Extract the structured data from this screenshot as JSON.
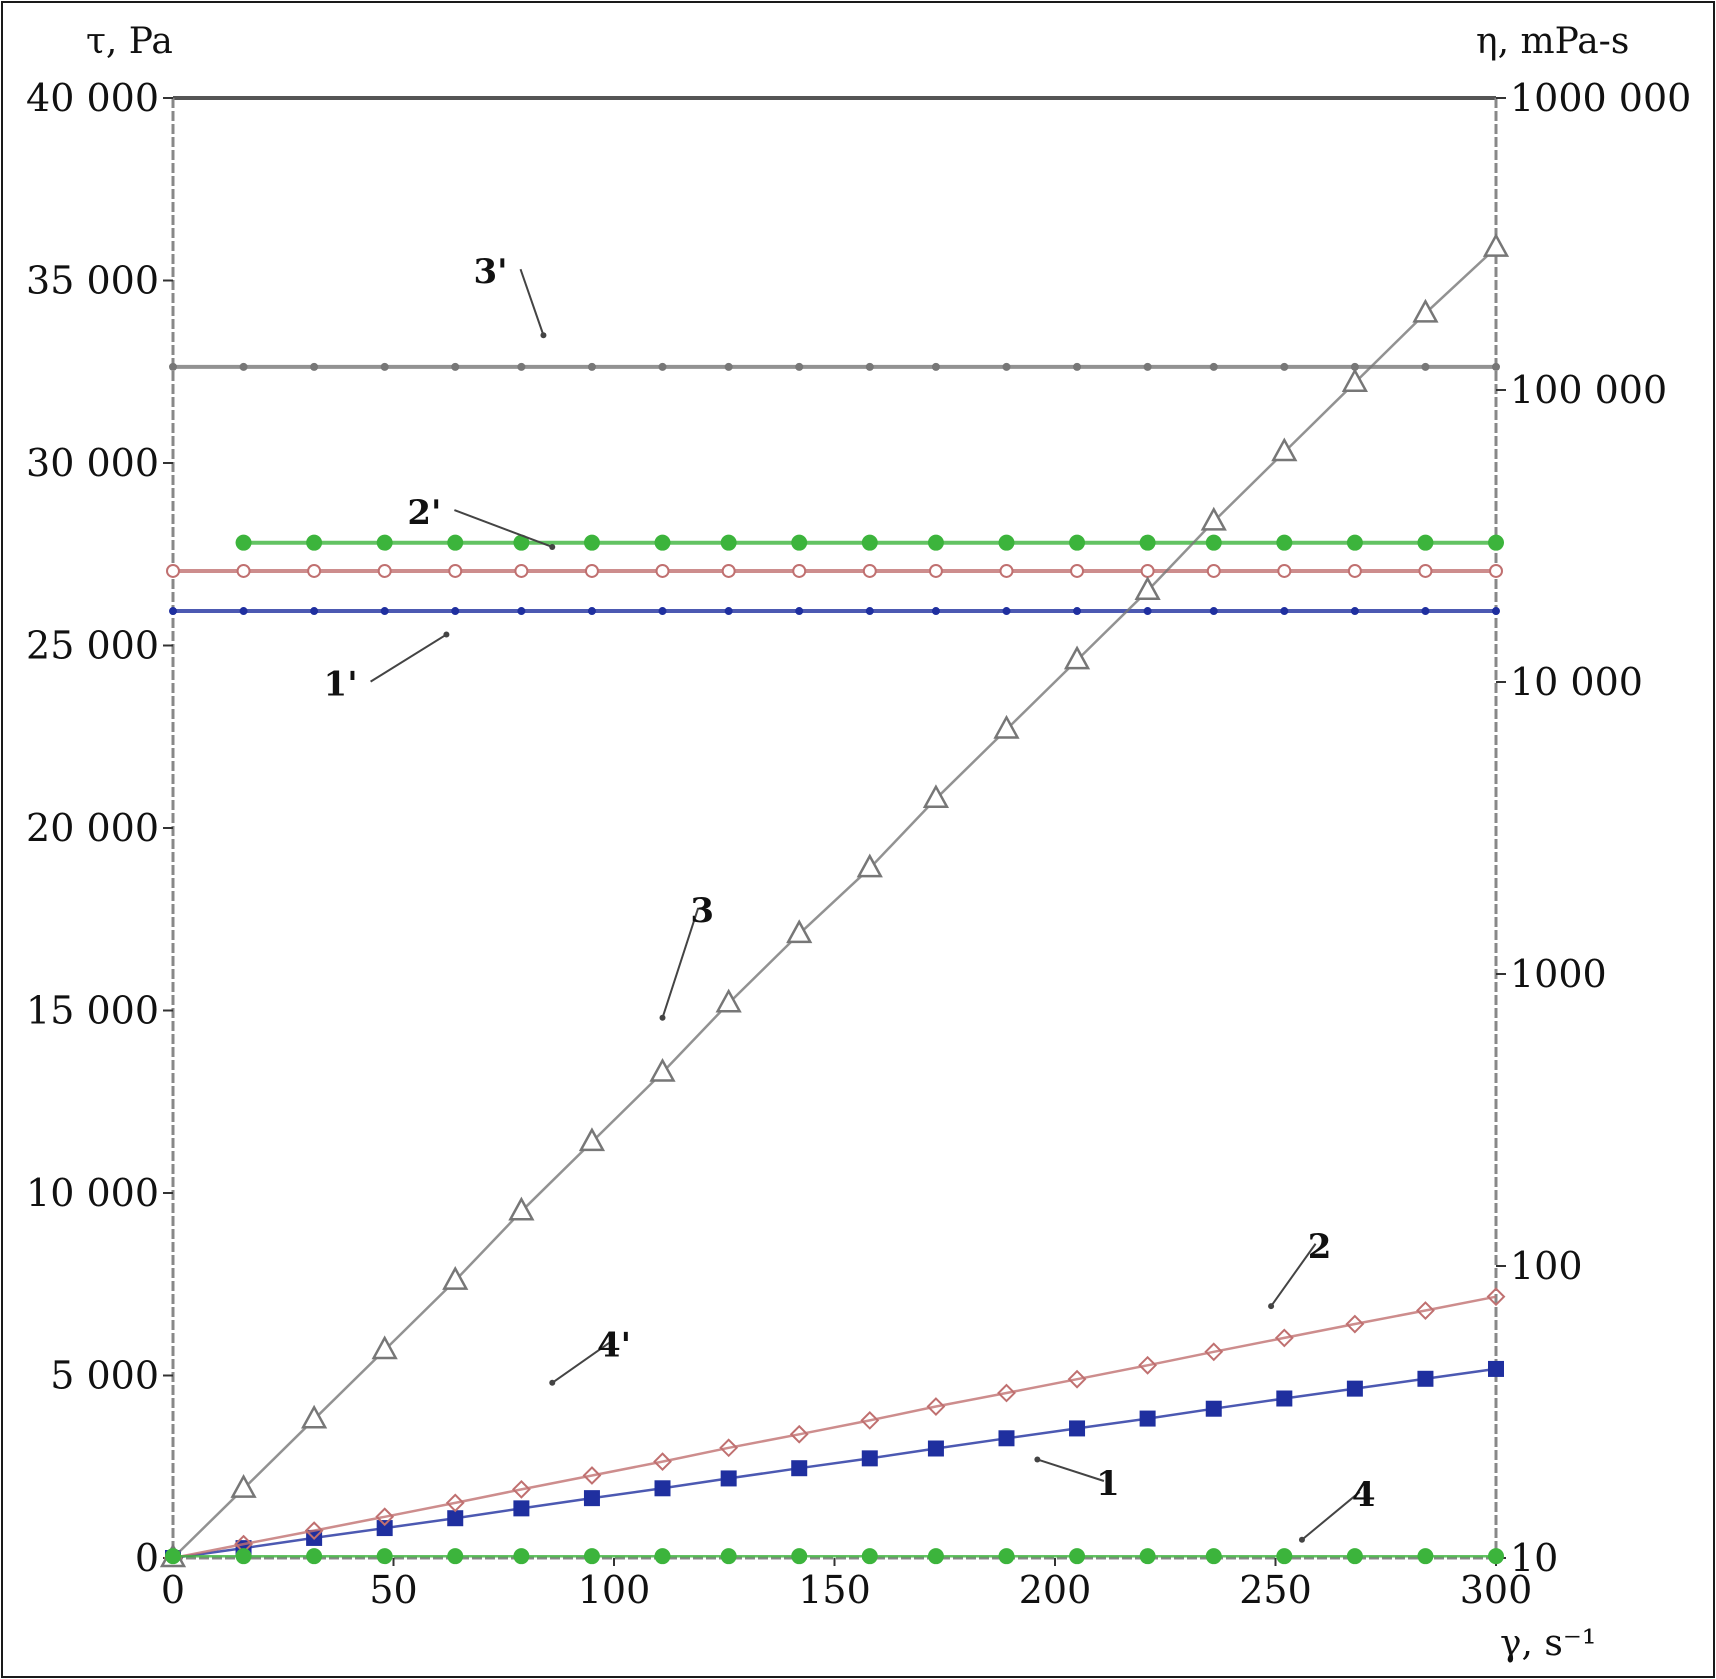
{
  "chart_data": {
    "type": "line",
    "left_axis_label": "τ, Pa",
    "right_axis_label": "η, mPa-s",
    "xlabel": "γ, s⁻¹",
    "xlim": [
      0,
      300
    ],
    "ylim_left": [
      0,
      40000
    ],
    "ylim_right_log": [
      10,
      1000000
    ],
    "x_ticks": [
      "0",
      "50",
      "100",
      "150",
      "200",
      "250",
      "300"
    ],
    "left_ticks": [
      "0",
      "5 000",
      "10 000",
      "15 000",
      "20 000",
      "25 000",
      "30 000",
      "35 000",
      "40 000"
    ],
    "right_ticks": [
      "10",
      "100",
      "1000",
      "10 000",
      "100 000",
      "1000 000"
    ],
    "right_tick_values": [
      10,
      100,
      1000,
      10000,
      100000,
      1000000
    ],
    "colors": {
      "blue": "#1f2f9f",
      "red": "#c07070",
      "gray": "#777777",
      "green": "#3cb43c",
      "axis": "#333333"
    },
    "stress_series": [
      {
        "name": "1",
        "axis": "left",
        "marker": "square",
        "color": "#1f2f9f",
        "x": [
          0,
          16,
          32,
          48,
          64,
          79,
          95,
          111,
          126,
          142,
          158,
          173,
          189,
          205,
          221,
          236,
          252,
          268,
          284,
          300
        ],
        "y": [
          0,
          270,
          550,
          820,
          1090,
          1360,
          1640,
          1910,
          2180,
          2460,
          2730,
          3000,
          3280,
          3550,
          3820,
          4090,
          4370,
          4640,
          4910,
          5180
        ]
      },
      {
        "name": "2",
        "axis": "left",
        "marker": "diamond",
        "color": "#c07070",
        "x": [
          0,
          16,
          32,
          48,
          64,
          79,
          95,
          111,
          126,
          142,
          158,
          173,
          189,
          205,
          221,
          236,
          252,
          268,
          284,
          300
        ],
        "y": [
          0,
          380,
          750,
          1130,
          1510,
          1880,
          2260,
          2640,
          3020,
          3390,
          3770,
          4150,
          4520,
          4900,
          5280,
          5650,
          6030,
          6410,
          6780,
          7160
        ]
      },
      {
        "name": "3",
        "axis": "left",
        "marker": "triangle",
        "color": "#777777",
        "x": [
          0,
          16,
          32,
          48,
          64,
          79,
          95,
          111,
          126,
          142,
          158,
          173,
          189,
          205,
          221,
          236,
          252,
          268,
          284,
          300
        ],
        "y": [
          0,
          1900,
          3800,
          5700,
          7600,
          9500,
          11400,
          13300,
          15200,
          17100,
          18900,
          20800,
          22700,
          24600,
          26500,
          28400,
          30300,
          32200,
          34100,
          35900
        ]
      },
      {
        "name": "4",
        "axis": "left",
        "marker": "circle",
        "color": "#3cb43c",
        "x": [
          0,
          16,
          32,
          48,
          64,
          79,
          95,
          111,
          126,
          142,
          158,
          173,
          189,
          205,
          221,
          236,
          252,
          268,
          284,
          300
        ],
        "y": [
          50,
          50,
          50,
          50,
          50,
          50,
          50,
          50,
          50,
          50,
          50,
          50,
          50,
          50,
          50,
          50,
          50,
          50,
          50,
          50
        ]
      }
    ],
    "viscosity_series": [
      {
        "name": "1'",
        "axis": "right",
        "marker": "dot",
        "color": "#1f2f9f",
        "x": [
          0,
          16,
          32,
          48,
          64,
          79,
          95,
          111,
          126,
          142,
          158,
          173,
          189,
          205,
          221,
          236,
          252,
          268,
          284,
          300
        ],
        "y": [
          17500,
          17500,
          17500,
          17500,
          17500,
          17500,
          17500,
          17500,
          17500,
          17500,
          17500,
          17500,
          17500,
          17500,
          17500,
          17500,
          17500,
          17500,
          17500,
          17500
        ]
      },
      {
        "name": "2'",
        "axis": "right",
        "marker": "open-circle",
        "color": "#c07070",
        "x": [
          0,
          16,
          32,
          48,
          64,
          79,
          95,
          111,
          126,
          142,
          158,
          173,
          189,
          205,
          221,
          236,
          252,
          268,
          284,
          300
        ],
        "y": [
          24000,
          24000,
          24000,
          24000,
          24000,
          24000,
          24000,
          24000,
          24000,
          24000,
          24000,
          24000,
          24000,
          24000,
          24000,
          24000,
          24000,
          24000,
          24000,
          24000
        ]
      },
      {
        "name": "3'",
        "axis": "right",
        "marker": "dot",
        "color": "#777777",
        "x": [
          0,
          16,
          32,
          48,
          64,
          79,
          95,
          111,
          126,
          142,
          158,
          173,
          189,
          205,
          221,
          236,
          252,
          268,
          284,
          300
        ],
        "y": [
          120000,
          120000,
          120000,
          120000,
          120000,
          120000,
          120000,
          120000,
          120000,
          120000,
          120000,
          120000,
          120000,
          120000,
          120000,
          120000,
          120000,
          120000,
          120000,
          120000
        ]
      },
      {
        "name": "4'",
        "axis": "right",
        "marker": "circle",
        "color": "#3cb43c",
        "x": [
          16,
          32,
          48,
          64,
          79,
          95,
          111,
          126,
          142,
          158,
          173,
          189,
          205,
          221,
          236,
          252,
          268,
          284,
          300
        ],
        "y": [
          30000,
          30000,
          30000,
          30000,
          30000,
          30000,
          30000,
          30000,
          30000,
          30000,
          30000,
          30000,
          30000,
          30000,
          30000,
          30000,
          30000,
          30000,
          30000
        ]
      }
    ],
    "annotations": [
      {
        "text": "3'",
        "x": 72,
        "y": 35200,
        "arrow_to_x": 84,
        "arrow_to_y": 33500
      },
      {
        "text": "2'",
        "x": 57,
        "y": 28600,
        "arrow_to_x": 86,
        "arrow_to_y": 27700
      },
      {
        "text": "1'",
        "x": 38,
        "y": 23900,
        "arrow_to_x": 62,
        "arrow_to_y": 25300
      },
      {
        "text": "3",
        "x": 120,
        "y": 17700,
        "arrow_to_x": 111,
        "arrow_to_y": 14800
      },
      {
        "text": "4'",
        "x": 100,
        "y": 5800,
        "arrow_to_x": 86,
        "arrow_to_y": 4800
      },
      {
        "text": "2",
        "x": 260,
        "y": 8500,
        "arrow_to_x": 249,
        "arrow_to_y": 6900
      },
      {
        "text": "1",
        "x": 212,
        "y": 2000,
        "arrow_to_x": 196,
        "arrow_to_y": 2700
      },
      {
        "text": "4",
        "x": 270,
        "y": 1700,
        "arrow_to_x": 256,
        "arrow_to_y": 500
      }
    ]
  }
}
